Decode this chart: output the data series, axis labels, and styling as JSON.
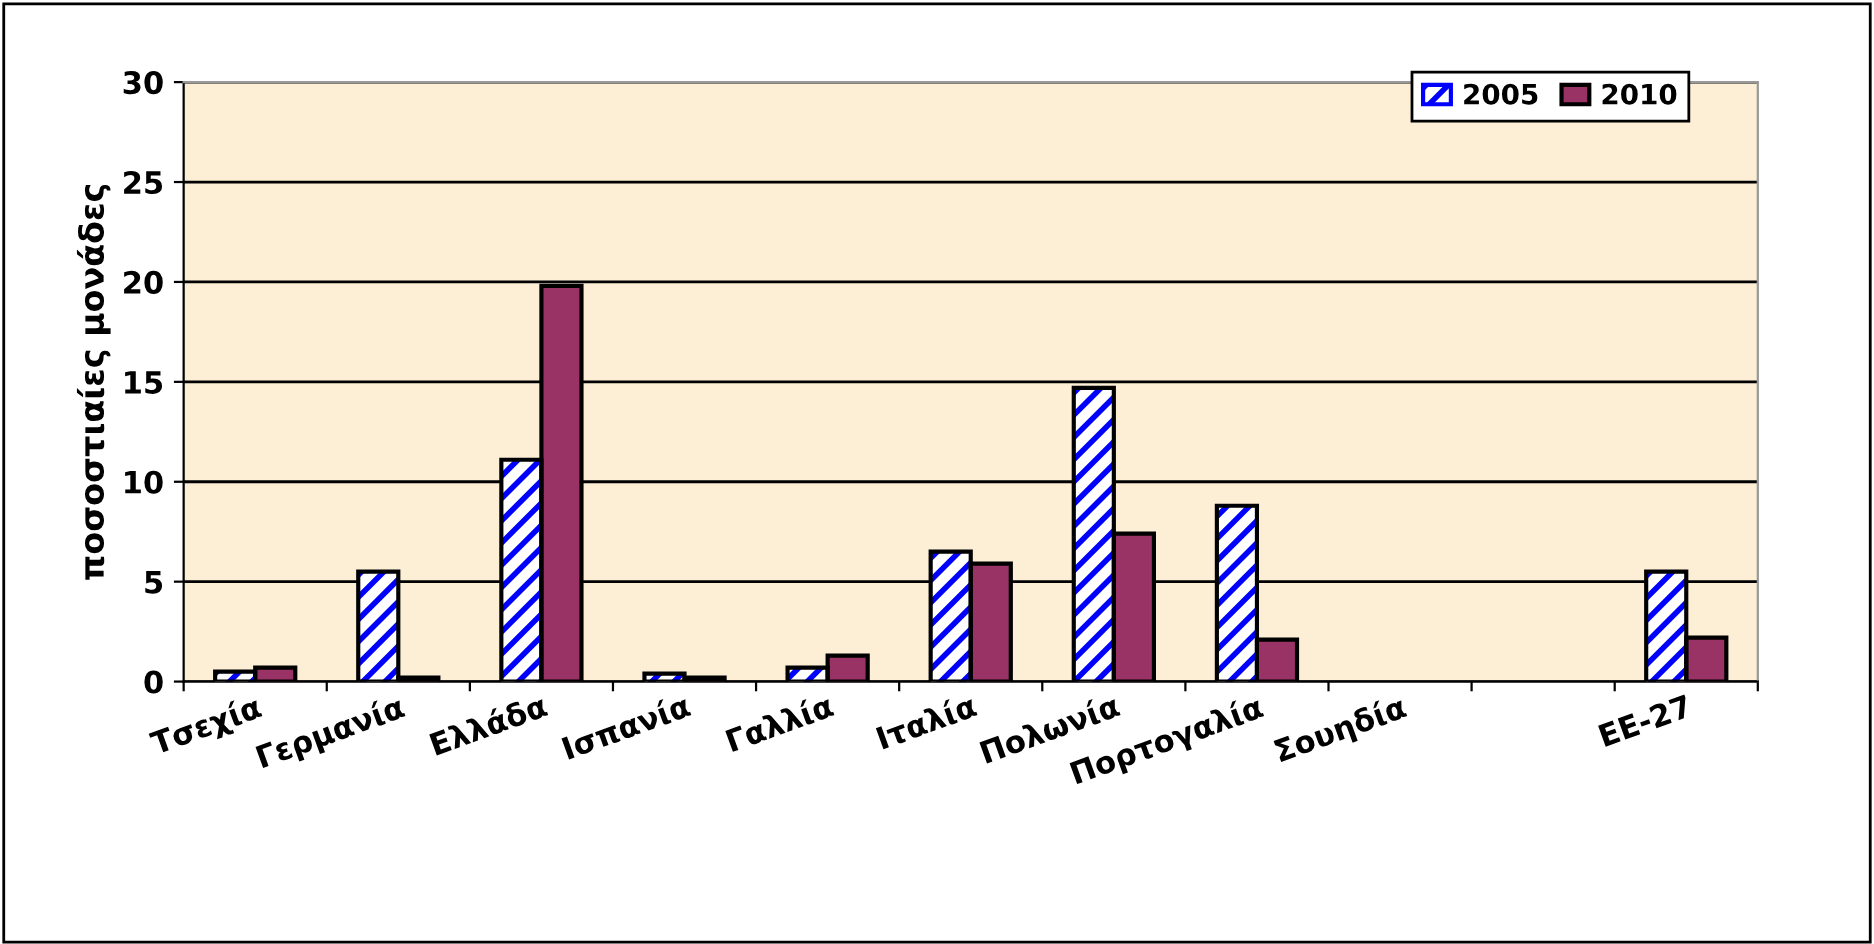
{
  "chart_data": {
    "type": "bar",
    "ylabel": "ποσοστιαίες μονάδες",
    "categories": [
      "Τσεχία",
      "Γερμανία",
      "Ελλάδα",
      "Ισπανία",
      "Γαλλία",
      "Ιταλία",
      "Πολωνία",
      "Πορτογαλία",
      "Σουηδία",
      null,
      "ΕΕ-27"
    ],
    "series": [
      {
        "name": "2005",
        "color": "#0000ff",
        "values": [
          0.5,
          5.5,
          11.1,
          0.4,
          0.7,
          6.5,
          14.7,
          8.8,
          null,
          null,
          5.5
        ]
      },
      {
        "name": "2010",
        "color": "#993366",
        "values": [
          0.7,
          0.2,
          19.8,
          0.2,
          1.3,
          5.9,
          7.4,
          2.1,
          null,
          null,
          2.2
        ]
      }
    ],
    "ylim": [
      0,
      30
    ],
    "yticks": [
      0,
      5,
      10,
      15,
      20,
      25,
      30
    ],
    "grid": "y",
    "legend": "top right"
  }
}
